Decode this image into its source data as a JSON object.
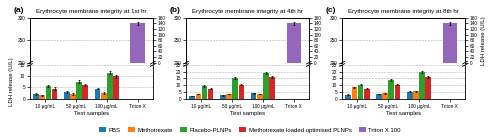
{
  "chart_data": [
    {
      "type": "bar",
      "categories": [
        "10 μg/mL",
        "50 μg/mL",
        "100 μg/mL",
        "Triton X"
      ],
      "series": [
        {
          "name": "PBS",
          "values": [
            2.0,
            3.0,
            4.5,
            null
          ],
          "errors": [
            0.3,
            0.3,
            0.4,
            null
          ]
        },
        {
          "name": "Methotrexate",
          "values": [
            1.5,
            2.0,
            2.5,
            null
          ],
          "errors": [
            0.2,
            0.3,
            0.3,
            null
          ]
        },
        {
          "name": "Placebo-PLNPs",
          "values": [
            5.5,
            7.5,
            11.5,
            null
          ],
          "errors": [
            0.5,
            0.6,
            0.7,
            null
          ]
        },
        {
          "name": "Methotrexate loaded optimised PLNPs",
          "values": [
            4.5,
            6.0,
            10.0,
            null
          ],
          "errors": [
            0.5,
            0.5,
            0.6,
            null
          ]
        }
      ],
      "xlabel": "Test samples",
      "ylabel": "LDH release (U/L)",
      "ylim": [
        0,
        15
      ],
      "yticks": [
        0,
        5,
        10,
        15
      ],
      "grid": true,
      "legend": "lower center"
    },
    {
      "type": "bar",
      "title": "Erythrocyte membrane integrity at 1st hr",
      "label": "(a)",
      "categories": [
        "10 μg/mL",
        "50 μg/mL",
        "100 μg/mL",
        "Triton X"
      ],
      "series": [
        {
          "name": "Triton X 100",
          "axis": "y2",
          "values": [
            null,
            null,
            null,
            140
          ],
          "errors": [
            null,
            null,
            null,
            4
          ]
        }
      ],
      "ylim": [
        200,
        300
      ],
      "yticks": [
        200,
        250,
        300
      ],
      "y2lim": [
        0,
        160
      ],
      "y2ticks": [
        0,
        20,
        40,
        60,
        80,
        100,
        120,
        140,
        160
      ],
      "grid": true,
      "tick_labels": "y"
    },
    {
      "type": "bar",
      "categories": [
        "10 μg/mL",
        "50 μg/mL",
        "100 μg/mL",
        "Triton X"
      ],
      "series": [
        {
          "name": "PBS",
          "values": [
            2.0,
            2.5,
            4.0,
            null
          ],
          "errors": [
            0.3,
            0.3,
            0.4,
            null
          ]
        },
        {
          "name": "Methotrexate",
          "values": [
            3.5,
            3.5,
            3.5,
            null
          ],
          "errors": [
            0.3,
            0.3,
            0.3,
            null
          ]
        },
        {
          "name": "Placebo-PLNPs",
          "values": [
            9.5,
            15.5,
            19.0,
            null
          ],
          "errors": [
            0.6,
            0.8,
            0.8,
            null
          ]
        },
        {
          "name": "Methotrexate loaded optimised PLNPs",
          "values": [
            7.5,
            10.5,
            16.0,
            null
          ],
          "errors": [
            0.5,
            0.6,
            0.7,
            null
          ]
        }
      ],
      "xlabel": "Test samples",
      "ylim": [
        0,
        25
      ],
      "yticks": [
        0,
        5,
        10,
        15,
        20,
        25
      ],
      "grid": true
    },
    {
      "type": "bar",
      "title": "Erythrocyte membrane integrity at 4th hr",
      "label": "(b)",
      "categories": [
        "10 μg/mL",
        "50 μg/mL",
        "100 μg/mL",
        "Triton X"
      ],
      "series": [
        {
          "name": "Triton X 100",
          "axis": "y2",
          "values": [
            null,
            null,
            null,
            140
          ],
          "errors": [
            null,
            null,
            null,
            4
          ]
        }
      ],
      "ylim": [
        200,
        300
      ],
      "yticks": [
        200,
        250,
        300
      ],
      "y2lim": [
        0,
        160
      ],
      "y2ticks": [
        0,
        20,
        40,
        60,
        80,
        100,
        120,
        140,
        160
      ],
      "grid": true,
      "tick_labels": "y"
    },
    {
      "type": "bar",
      "categories": [
        "10 μg/mL",
        "50 μg/mL",
        "100 μg/mL",
        "Triton X"
      ],
      "series": [
        {
          "name": "PBS",
          "values": [
            3.0,
            3.5,
            5.0,
            null
          ],
          "errors": [
            0.3,
            0.3,
            0.4,
            null
          ]
        },
        {
          "name": "Methotrexate",
          "values": [
            8.5,
            4.0,
            5.5,
            null
          ],
          "errors": [
            0.5,
            0.3,
            0.4,
            null
          ]
        },
        {
          "name": "Placebo-PLNPs",
          "values": [
            10.5,
            14.0,
            19.5,
            null
          ],
          "errors": [
            0.6,
            0.7,
            0.8,
            null
          ]
        },
        {
          "name": "Methotrexate loaded optimised PLNPs",
          "values": [
            7.5,
            10.5,
            16.0,
            null
          ],
          "errors": [
            0.5,
            0.6,
            0.7,
            null
          ]
        }
      ],
      "xlabel": "Test samples",
      "ylim": [
        0,
        25
      ],
      "yticks": [
        0,
        5,
        10,
        15,
        20,
        25
      ],
      "grid": true
    },
    {
      "type": "bar",
      "title": "Erythrocyte membrane integrity at 8th hr",
      "label": "(c)",
      "categories": [
        "10 μg/mL",
        "50 μg/mL",
        "100 μg/mL",
        "Triton X"
      ],
      "series": [
        {
          "name": "Triton X 100",
          "axis": "y2",
          "values": [
            null,
            null,
            null,
            140
          ],
          "errors": [
            null,
            null,
            null,
            4
          ]
        }
      ],
      "ylim": [
        200,
        300
      ],
      "yticks": [
        200,
        250,
        300
      ],
      "y2lim": [
        0,
        160
      ],
      "y2ticks": [
        0,
        20,
        40,
        60,
        80,
        100,
        120,
        140,
        160
      ],
      "y2label": "LDH release (U/L)",
      "grid": true,
      "tick_labels": "y"
    }
  ]
}
